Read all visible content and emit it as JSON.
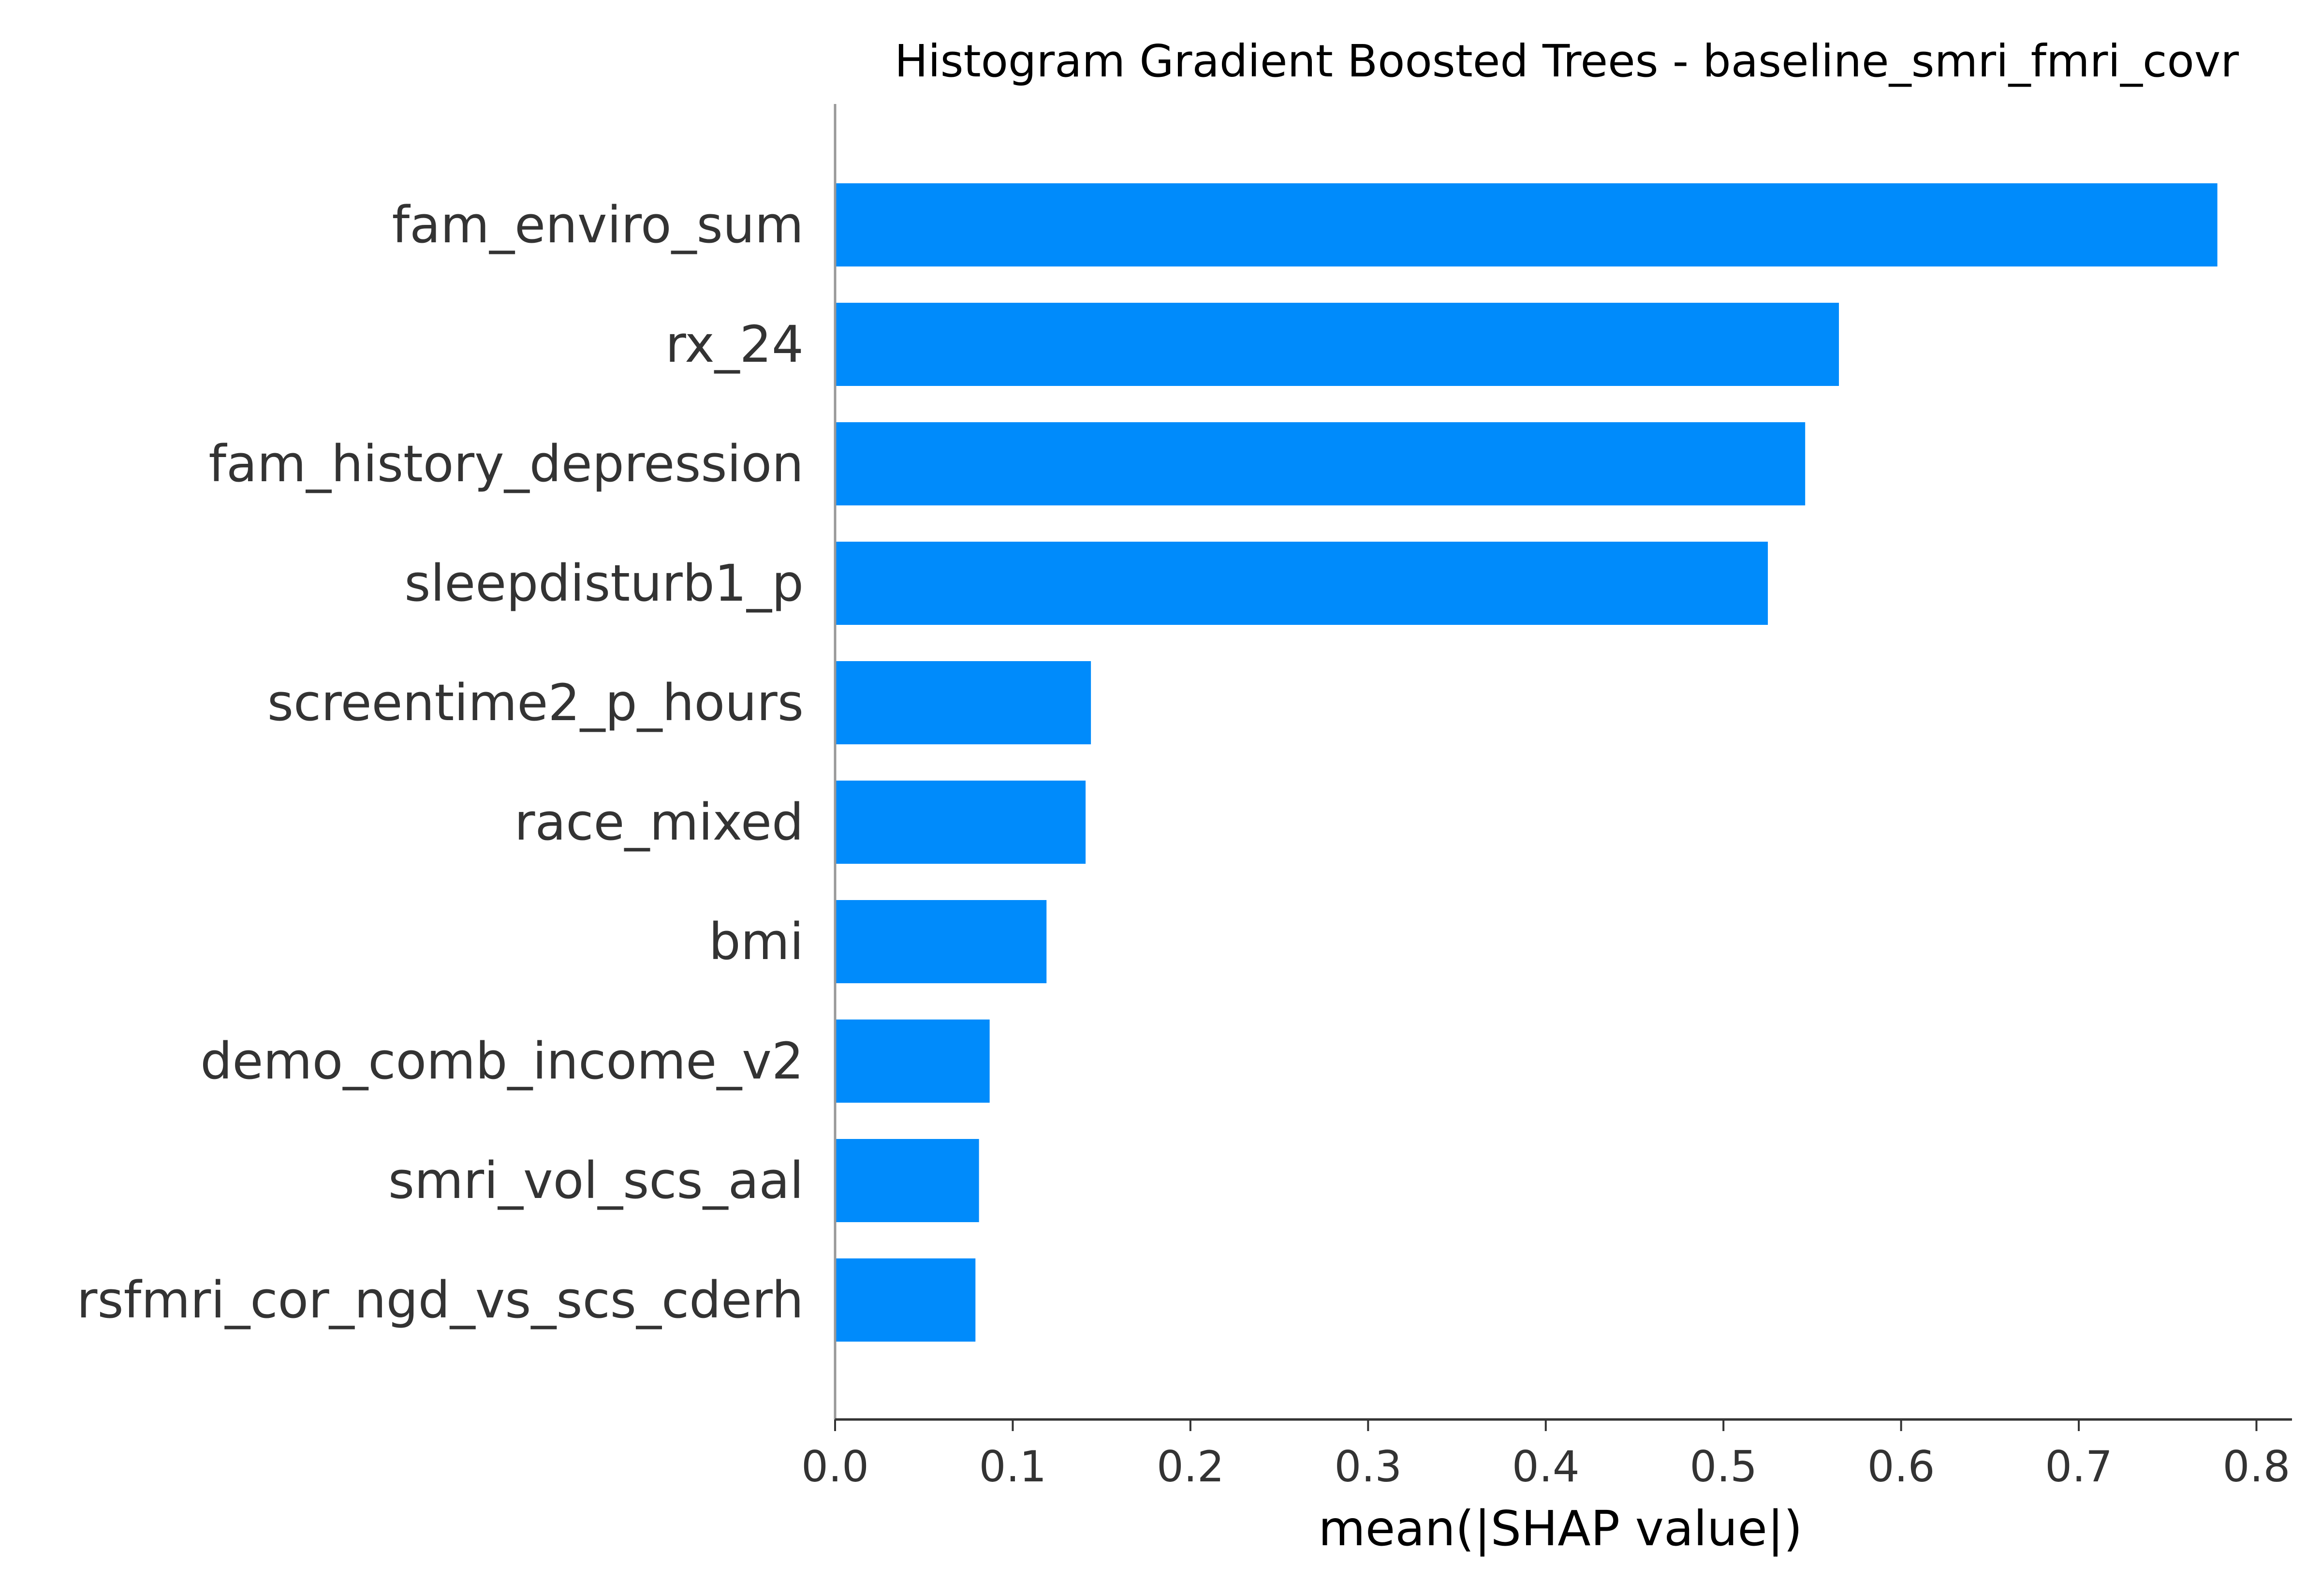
{
  "chart_data": {
    "type": "bar",
    "orientation": "horizontal",
    "title": "Histogram Gradient Boosted Trees - baseline_smri_fmri_covr",
    "xlabel": "mean(|SHAP value|)",
    "ylabel": "",
    "xlim": [
      0,
      0.82
    ],
    "xticks": [
      0.0,
      0.1,
      0.2,
      0.3,
      0.4,
      0.5,
      0.6,
      0.7,
      0.8
    ],
    "xtick_labels": [
      "0.0",
      "0.1",
      "0.2",
      "0.3",
      "0.4",
      "0.5",
      "0.6",
      "0.7",
      "0.8"
    ],
    "categories": [
      "fam_enviro_sum",
      "rx_24",
      "fam_history_depression",
      "sleepdisturb1_p",
      "screentime2_p_hours",
      "race_mixed",
      "bmi",
      "demo_comb_income_v2",
      "smri_vol_scs_aal",
      "rsfmri_cor_ngd_vs_scs_cderh"
    ],
    "values": [
      0.778,
      0.565,
      0.546,
      0.525,
      0.144,
      0.141,
      0.119,
      0.087,
      0.081,
      0.079
    ],
    "bar_color": "#008bfb",
    "grid": false,
    "legend": "none"
  }
}
